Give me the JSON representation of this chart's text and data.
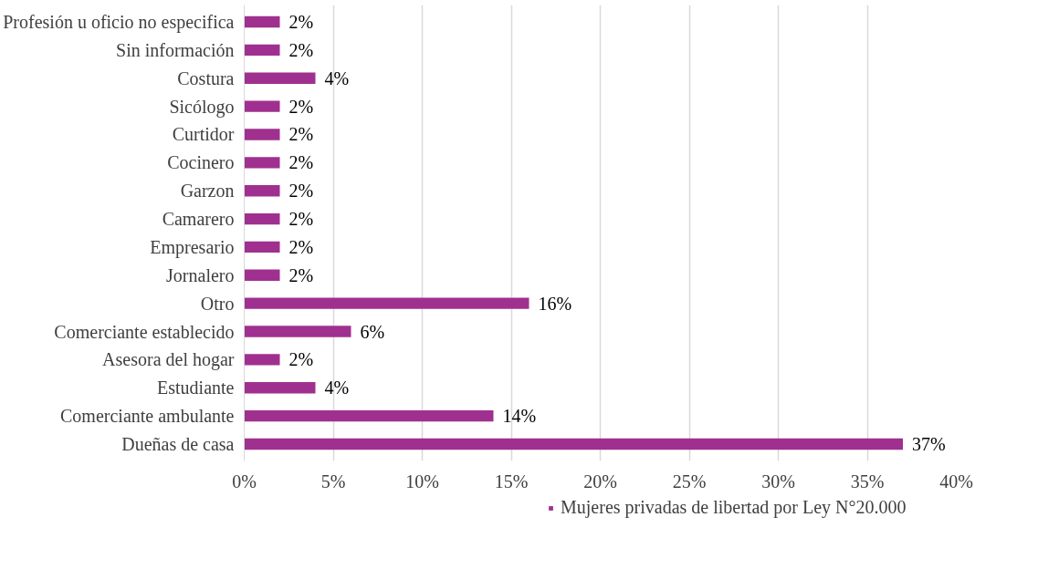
{
  "chart_data": {
    "type": "bar",
    "orientation": "horizontal",
    "categories": [
      "Profesión u oficio no especifica",
      "Sin información",
      "Costura",
      "Sicólogo",
      "Curtidor",
      "Cocinero",
      "Garzon",
      "Camarero",
      "Empresario",
      "Jornalero",
      "Otro",
      "Comerciante establecido",
      "Asesora del hogar",
      "Estudiante",
      "Comerciante ambulante",
      "Dueñas de casa"
    ],
    "series": [
      {
        "name": "Mujeres privadas de libertad por Ley N°20.000",
        "color": "#a0308f",
        "values": [
          2,
          2,
          4,
          2,
          2,
          2,
          2,
          2,
          2,
          2,
          16,
          6,
          2,
          4,
          14,
          37
        ],
        "value_labels": [
          "2%",
          "2%",
          "4%",
          "2%",
          "2%",
          "2%",
          "2%",
          "2%",
          "2%",
          "2%",
          "16%",
          "6%",
          "2%",
          "4%",
          "14%",
          "37%"
        ]
      }
    ],
    "xlim": [
      0,
      40
    ],
    "xticks": [
      {
        "value": 0,
        "label": "0%"
      },
      {
        "value": 5,
        "label": "5%"
      },
      {
        "value": 10,
        "label": "10%"
      },
      {
        "value": 15,
        "label": "15%"
      },
      {
        "value": 20,
        "label": "20%"
      },
      {
        "value": 25,
        "label": "25%"
      },
      {
        "value": 30,
        "label": "30%"
      },
      {
        "value": 35,
        "label": "35%"
      },
      {
        "value": 40,
        "label": "40%"
      }
    ],
    "grid": "x",
    "legend": "bottom"
  }
}
